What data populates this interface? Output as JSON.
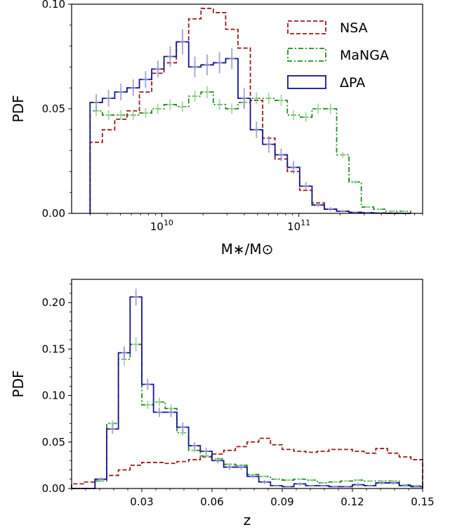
{
  "colors": {
    "nsa": "#9b1b1b",
    "manga": "#1f8c1f",
    "dpa": "#16168c",
    "dpa_err": "#8f8fd0",
    "manga_err": "#8fd08f"
  },
  "chart_data": [
    {
      "type": "histogram",
      "xscale": "log",
      "xlim": [
        2200000000.0,
        800000000000.0
      ],
      "ylim": [
        0,
        0.1
      ],
      "xlabel": "M∗/M⊙",
      "ylabel": "PDF",
      "legend_position": "top-right",
      "legend": [
        "NSA",
        "MaNGA",
        "ΔPA"
      ],
      "x_ticks": [
        {
          "value": 10000000000.0,
          "label": "10",
          "exp": "10"
        },
        {
          "value": 100000000000.0,
          "label": "10",
          "exp": "11"
        }
      ],
      "y_ticks": [
        {
          "value": 0,
          "label": "0.00"
        },
        {
          "value": 0.05,
          "label": "0.05"
        },
        {
          "value": 0.1,
          "label": "0.10"
        }
      ],
      "bin_edges": [
        3000000000.0,
        3690000000.0,
        4540000000.0,
        5580000000.0,
        6870000000.0,
        8450000000.0,
        10390000000.0,
        12780000000.0,
        15720000000.0,
        19340000000.0,
        23790000000.0,
        29270000000.0,
        36000000000.0,
        44290000000.0,
        54480000000.0,
        67020000000.0,
        82440000000.0,
        101400000000.0,
        124800000000.0,
        153500000000.0,
        188800000000.0,
        232300000000.0,
        285700000000.0,
        351500000000.0,
        432400000000.0,
        531900000000.0,
        654300000000.0
      ],
      "series": [
        {
          "name": "NSA",
          "style": "dashed",
          "values": [
            0.034,
            0.04,
            0.045,
            0.049,
            0.058,
            0.067,
            0.072,
            0.082,
            0.093,
            0.098,
            0.096,
            0.088,
            0.079,
            0.054,
            0.036,
            0.026,
            0.02,
            0.011,
            0.005,
            0.002,
            0.001,
            0.0005,
            0.0003,
            0.0002,
            0.0001,
            0.0
          ]
        },
        {
          "name": "MaNGA",
          "style": "dashdot",
          "values": [
            0.049,
            0.047,
            0.047,
            0.047,
            0.048,
            0.05,
            0.052,
            0.051,
            0.056,
            0.058,
            0.052,
            0.05,
            0.053,
            0.055,
            0.055,
            0.054,
            0.047,
            0.046,
            0.05,
            0.05,
            0.028,
            0.015,
            0.003,
            0.002,
            0.001,
            0.001
          ]
        },
        {
          "name": "ΔPA",
          "style": "solid",
          "values": [
            0.053,
            0.055,
            0.058,
            0.06,
            0.064,
            0.069,
            0.075,
            0.082,
            0.07,
            0.071,
            0.072,
            0.074,
            0.055,
            0.04,
            0.033,
            0.028,
            0.022,
            0.013,
            0.004,
            0.002,
            0.001,
            0.0005,
            0.0003,
            0.0001,
            0.0,
            0.0
          ],
          "errors": [
            0.004,
            0.004,
            0.004,
            0.004,
            0.004,
            0.004,
            0.005,
            0.006,
            0.005,
            0.005,
            0.005,
            0.005,
            0.005,
            0.004,
            0.004,
            0.003,
            0.003,
            0.002,
            0.001,
            0.001,
            0.0005,
            0.0003,
            0.0002,
            0.0001,
            0.0,
            0.0
          ]
        }
      ]
    },
    {
      "type": "histogram",
      "xlim": [
        0.0,
        0.15
      ],
      "ylim": [
        0,
        0.225
      ],
      "xlabel": "z",
      "ylabel": "PDF",
      "x_ticks": [
        {
          "value": 0.03,
          "label": "0.03"
        },
        {
          "value": 0.06,
          "label": "0.06"
        },
        {
          "value": 0.09,
          "label": "0.09"
        },
        {
          "value": 0.12,
          "label": "0.12"
        },
        {
          "value": 0.15,
          "label": "0.15"
        }
      ],
      "y_ticks": [
        {
          "value": 0,
          "label": "0.00"
        },
        {
          "value": 0.05,
          "label": "0.05"
        },
        {
          "value": 0.1,
          "label": "0.10"
        },
        {
          "value": 0.15,
          "label": "0.15"
        },
        {
          "value": 0.2,
          "label": "0.20"
        }
      ],
      "bin_edges": [
        0.0,
        0.005,
        0.01,
        0.015,
        0.02,
        0.025,
        0.03,
        0.035,
        0.04,
        0.045,
        0.05,
        0.055,
        0.06,
        0.065,
        0.07,
        0.075,
        0.08,
        0.085,
        0.09,
        0.095,
        0.1,
        0.105,
        0.11,
        0.115,
        0.12,
        0.125,
        0.13,
        0.135,
        0.14,
        0.145,
        0.15
      ],
      "series": [
        {
          "name": "NSA",
          "style": "dashed",
          "values": [
            0.005,
            0.007,
            0.01,
            0.014,
            0.02,
            0.025,
            0.028,
            0.028,
            0.027,
            0.029,
            0.031,
            0.034,
            0.037,
            0.041,
            0.045,
            0.05,
            0.054,
            0.047,
            0.042,
            0.04,
            0.039,
            0.04,
            0.042,
            0.042,
            0.04,
            0.038,
            0.043,
            0.038,
            0.034,
            0.031
          ]
        },
        {
          "name": "MaNGA",
          "style": "dashdot",
          "values": [
            0.0,
            0.0,
            0.008,
            0.07,
            0.139,
            0.155,
            0.09,
            0.093,
            0.086,
            0.06,
            0.041,
            0.035,
            0.032,
            0.026,
            0.025,
            0.015,
            0.013,
            0.01,
            0.009,
            0.01,
            0.009,
            0.006,
            0.007,
            0.008,
            0.009,
            0.008,
            0.008,
            0.008,
            0.004,
            0.003
          ]
        },
        {
          "name": "ΔPA",
          "style": "solid",
          "values": [
            0.0,
            0.0,
            0.01,
            0.064,
            0.146,
            0.206,
            0.112,
            0.082,
            0.082,
            0.066,
            0.046,
            0.04,
            0.03,
            0.023,
            0.023,
            0.013,
            0.007,
            0.003,
            0.002,
            0.005,
            0.003,
            0.003,
            0.002,
            0.002,
            0.004,
            0.003,
            0.006,
            0.006,
            0.003,
            0.002
          ],
          "errors": [
            0.0,
            0.0,
            0.002,
            0.005,
            0.007,
            0.009,
            0.006,
            0.005,
            0.005,
            0.005,
            0.004,
            0.004,
            0.003,
            0.003,
            0.003,
            0.002,
            0.002,
            0.001,
            0.001,
            0.002,
            0.001,
            0.001,
            0.001,
            0.001,
            0.002,
            0.001,
            0.002,
            0.002,
            0.001,
            0.001
          ]
        }
      ]
    }
  ]
}
